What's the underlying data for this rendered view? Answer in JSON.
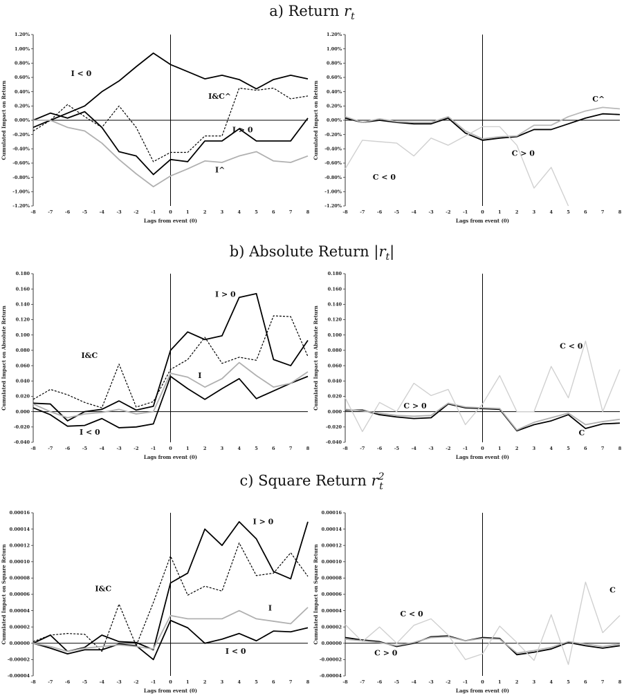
{
  "rows": [
    {
      "prefix": "a) Return",
      "symbol": "r",
      "sub": "t",
      "sup": "",
      "bars": ""
    },
    {
      "prefix": "b) Absolute Return",
      "symbol": "r",
      "sub": "t",
      "sup": "",
      "bars": "|"
    },
    {
      "prefix": "c) Square Return",
      "symbol": "r",
      "sub": "t",
      "sup": "2",
      "bars": ""
    }
  ],
  "chart_data": [
    {
      "type": "line",
      "panel": "a-left",
      "xlabel": "Lags from event (0)",
      "ylabel": "Cumulated Impact on Return",
      "x": [
        -8,
        -7,
        -6,
        -5,
        -4,
        -3,
        -2,
        -1,
        0,
        1,
        2,
        3,
        4,
        5,
        6,
        7,
        8
      ],
      "ylim": [
        -0.012,
        0.012
      ],
      "yticks": [
        -0.012,
        -0.01,
        -0.008,
        -0.006,
        -0.004,
        -0.002,
        0,
        0.002,
        0.004,
        0.006,
        0.008,
        0.01,
        0.012
      ],
      "ytick_labels": [
        "-1.20%",
        "-1.00%",
        "-0.80%",
        "-0.60%",
        "-0.40%",
        "-0.20%",
        "0.00%",
        "0.20%",
        "0.40%",
        "0.60%",
        "0.80%",
        "1.00%",
        "1.20%"
      ],
      "series": [
        {
          "values": [
            -0.001,
            0.0,
            0.001,
            0.002,
            0.004,
            0.0055,
            0.0075,
            0.0094,
            0.0078,
            0.0068,
            0.0058,
            0.0063,
            0.0057,
            0.0044,
            0.0057,
            0.0063,
            0.0058
          ],
          "color": "#000000",
          "dash": "",
          "width": 1.8
        },
        {
          "values": [
            0.0,
            0.001,
            0.0003,
            0.0012,
            -0.001,
            -0.0044,
            -0.005,
            -0.0076,
            -0.0055,
            -0.0058,
            -0.0029,
            -0.0029,
            -0.0012,
            -0.0029,
            -0.0029,
            -0.0029,
            0.0003
          ],
          "color": "#000000",
          "dash": "",
          "width": 1.8
        },
        {
          "values": [
            -0.0015,
            0.0,
            0.0022,
            0.0005,
            -0.001,
            0.002,
            -0.001,
            -0.0058,
            -0.0045,
            -0.0045,
            -0.0022,
            -0.0022,
            0.0045,
            0.0042,
            0.0045,
            0.003,
            0.0034
          ],
          "color": "#000000",
          "dash": "3,2",
          "width": 1.2
        },
        {
          "values": [
            0.0,
            0.0,
            -0.001,
            -0.0015,
            -0.0032,
            -0.0055,
            -0.0075,
            -0.0093,
            -0.0078,
            -0.0068,
            -0.0057,
            -0.0059,
            -0.005,
            -0.0044,
            -0.0057,
            -0.0059,
            -0.005
          ],
          "color": "#b0b0b0",
          "dash": "",
          "width": 1.8
        }
      ],
      "annotations": [
        {
          "text": "I < 0",
          "x": -5.8,
          "y": 0.0062
        },
        {
          "text": "I&C^",
          "x": 2.2,
          "y": 0.003
        },
        {
          "text": "I > 0",
          "x": 3.6,
          "y": -0.0017
        },
        {
          "text": "I^",
          "x": 2.6,
          "y": -0.0073
        }
      ]
    },
    {
      "type": "line",
      "panel": "a-right",
      "xlabel": "Lags from event (0)",
      "ylabel": "Cumulated Impact on Return",
      "x": [
        -8,
        -7,
        -6,
        -5,
        -4,
        -3,
        -2,
        -1,
        0,
        1,
        2,
        3,
        4,
        5,
        6,
        7,
        8
      ],
      "ylim": [
        -0.012,
        0.012
      ],
      "yticks": [
        -0.012,
        -0.01,
        -0.008,
        -0.006,
        -0.004,
        -0.002,
        0,
        0.002,
        0.004,
        0.006,
        0.008,
        0.01,
        0.012
      ],
      "ytick_labels": [
        "-1.20%",
        "-1.00%",
        "-0.80%",
        "-0.60%",
        "-0.40%",
        "-0.20%",
        "0.00%",
        "0.20%",
        "0.40%",
        "0.60%",
        "0.80%",
        "1.00%",
        "1.20%"
      ],
      "series": [
        {
          "values": [
            0.0003,
            -0.0003,
            0.0,
            -0.0003,
            -0.0005,
            -0.0005,
            0.0003,
            -0.0018,
            -0.0028,
            -0.0025,
            -0.0023,
            -0.0013,
            -0.0013,
            -0.0005,
            0.0003,
            0.0009,
            0.0008
          ],
          "color": "#000000",
          "dash": "",
          "width": 1.8
        },
        {
          "values": [
            0.0005,
            -0.0003,
            0.0002,
            -0.0002,
            -0.0003,
            -0.0003,
            0.0005,
            -0.0015,
            -0.0026,
            -0.0023,
            -0.0022,
            -0.0007,
            -0.0007,
            0.0005,
            0.0013,
            0.0018,
            0.0016
          ],
          "color": "#b8b8b8",
          "dash": "",
          "width": 1.8
        },
        {
          "values": [
            -0.0068,
            -0.0028,
            -0.003,
            -0.0032,
            -0.005,
            -0.0025,
            -0.0035,
            -0.0022,
            -0.0009,
            -0.0009,
            -0.0035,
            -0.0095,
            -0.0066,
            -0.012,
            null,
            null,
            null
          ],
          "color": "#d0d0d0",
          "dash": "",
          "width": 1.4
        }
      ],
      "annotations": [
        {
          "text": "C^",
          "x": 6.4,
          "y": 0.0026
        },
        {
          "text": "C > 0",
          "x": 1.7,
          "y": -0.005
        },
        {
          "text": "C < 0",
          "x": -6.4,
          "y": -0.0083
        }
      ]
    },
    {
      "type": "line",
      "panel": "b-left",
      "xlabel": "Lags from event (0)",
      "ylabel": "Cumulated Impact on Absolute Return",
      "x": [
        -8,
        -7,
        -6,
        -5,
        -4,
        -3,
        -2,
        -1,
        0,
        1,
        2,
        3,
        4,
        5,
        6,
        7,
        8
      ],
      "ylim": [
        -0.04,
        0.18
      ],
      "yticks": [
        -0.04,
        -0.02,
        0,
        0.02,
        0.04,
        0.06,
        0.08,
        0.1,
        0.12,
        0.14,
        0.16,
        0.18
      ],
      "ytick_labels": [
        "-0.040",
        "-0.020",
        "0.000",
        "0.020",
        "0.040",
        "0.060",
        "0.080",
        "0.100",
        "0.120",
        "0.140",
        "0.160",
        "0.180"
      ],
      "series": [
        {
          "values": [
            0.011,
            0.01,
            -0.012,
            0.0,
            0.003,
            0.014,
            0.002,
            0.007,
            0.08,
            0.104,
            0.094,
            0.099,
            0.149,
            0.154,
            0.068,
            0.06,
            0.093
          ],
          "color": "#000000",
          "dash": "",
          "width": 1.8
        },
        {
          "values": [
            0.005,
            -0.004,
            -0.019,
            -0.018,
            -0.009,
            -0.021,
            -0.02,
            -0.016,
            0.046,
            0.03,
            0.016,
            0.03,
            0.043,
            0.017,
            0.027,
            0.037,
            0.046
          ],
          "color": "#000000",
          "dash": "",
          "width": 1.8
        },
        {
          "values": [
            0.016,
            0.029,
            0.022,
            0.012,
            0.005,
            0.062,
            0.006,
            0.013,
            0.055,
            0.068,
            0.097,
            0.063,
            0.071,
            0.067,
            0.125,
            0.124,
            0.072
          ],
          "color": "#000000",
          "dash": "3,2",
          "width": 1.2
        },
        {
          "values": [
            0.01,
            0.0,
            -0.008,
            -0.003,
            -0.001,
            0.003,
            -0.003,
            0.0,
            0.05,
            0.045,
            0.032,
            0.043,
            0.064,
            0.047,
            0.032,
            0.037,
            0.052
          ],
          "color": "#b0b0b0",
          "dash": "",
          "width": 1.8
        }
      ],
      "annotations": [
        {
          "text": "I > 0",
          "x": 2.6,
          "y": 0.15
        },
        {
          "text": "I&C",
          "x": -5.2,
          "y": 0.07
        },
        {
          "text": "I",
          "x": 1.6,
          "y": 0.044
        },
        {
          "text": "I < 0",
          "x": -5.3,
          "y": -0.03
        }
      ]
    },
    {
      "type": "line",
      "panel": "b-right",
      "xlabel": "Lags from event (0)",
      "ylabel": "Cumulated Impact on Absolute Return",
      "x": [
        -8,
        -7,
        -6,
        -5,
        -4,
        -3,
        -2,
        -1,
        0,
        1,
        2,
        3,
        4,
        5,
        6,
        7,
        8
      ],
      "ylim": [
        -0.04,
        0.18
      ],
      "yticks": [
        -0.04,
        -0.02,
        0,
        0.02,
        0.04,
        0.06,
        0.08,
        0.1,
        0.12,
        0.14,
        0.16,
        0.18
      ],
      "ytick_labels": [
        "-0.040",
        "-0.020",
        "0.000",
        "0.020",
        "0.040",
        "0.060",
        "0.080",
        "0.100",
        "0.120",
        "0.140",
        "0.160",
        "0.180"
      ],
      "series": [
        {
          "values": [
            0.002,
            0.002,
            -0.004,
            -0.007,
            -0.009,
            -0.008,
            0.01,
            0.005,
            0.004,
            0.003,
            -0.025,
            -0.017,
            -0.012,
            -0.004,
            -0.022,
            -0.016,
            -0.015
          ],
          "color": "#000000",
          "dash": "",
          "width": 1.8
        },
        {
          "values": [
            0.003,
            0.001,
            -0.002,
            -0.005,
            -0.006,
            -0.005,
            0.011,
            0.006,
            0.005,
            0.004,
            -0.024,
            -0.014,
            -0.008,
            -0.002,
            -0.017,
            -0.013,
            -0.01
          ],
          "color": "#b0b0b0",
          "dash": "",
          "width": 1.8
        },
        {
          "values": [
            0.018,
            -0.026,
            0.012,
            0.0,
            0.037,
            0.021,
            0.029,
            -0.017,
            0.01,
            0.047,
            0.0,
            0.0,
            0.059,
            0.018,
            0.092,
            0.0,
            0.055
          ],
          "color": "#d0d0d0",
          "dash": "",
          "width": 1.4
        }
      ],
      "annotations": [
        {
          "text": "C < 0",
          "x": 4.5,
          "y": 0.082
        },
        {
          "text": "C > 0",
          "x": -4.6,
          "y": 0.004
        },
        {
          "text": "C",
          "x": 5.6,
          "y": -0.031
        }
      ]
    },
    {
      "type": "line",
      "panel": "c-left",
      "xlabel": "Lags from event (0)",
      "ylabel": "Cumulated Impact on Square Return",
      "x": [
        -8,
        -7,
        -6,
        -5,
        -4,
        -3,
        -2,
        -1,
        0,
        1,
        2,
        3,
        4,
        5,
        6,
        7,
        8
      ],
      "ylim": [
        -4e-05,
        0.00016
      ],
      "yticks": [
        -4e-05,
        -2e-05,
        0,
        2e-05,
        4e-05,
        6e-05,
        8e-05,
        0.0001,
        0.00012,
        0.00014,
        0.00016
      ],
      "ytick_labels": [
        "-0.00004",
        "-0.00002",
        "0.00000",
        "0.00002",
        "0.00004",
        "0.00006",
        "0.00008",
        "0.00010",
        "0.00012",
        "0.00014",
        "0.00016"
      ],
      "series": [
        {
          "values": [
            0.0,
            1e-05,
            -1e-05,
            -5e-06,
            1e-05,
            2e-06,
            1e-06,
            -8e-06,
            7.4e-05,
            8.6e-05,
            0.00014,
            0.00012,
            0.000149,
            0.000128,
            8.8e-05,
            7.9e-05,
            0.000149
          ],
          "color": "#000000",
          "dash": "",
          "width": 1.8
        },
        {
          "values": [
            0.0,
            -6e-06,
            -1.3e-05,
            -8e-06,
            -8e-06,
            -1e-06,
            -3e-06,
            -2e-05,
            2.8e-05,
            1.9e-05,
            0.0,
            5e-06,
            1.2e-05,
            3e-06,
            1.5e-05,
            1.4e-05,
            1.9e-05
          ],
          "color": "#000000",
          "dash": "",
          "width": 1.8
        },
        {
          "values": [
            2e-06,
            1e-05,
            1.2e-05,
            1.1e-05,
            -1e-05,
            4.8e-05,
            -3e-06,
            5e-05,
            0.000107,
            5.9e-05,
            7e-05,
            6.4e-05,
            0.000123,
            8.3e-05,
            8.6e-05,
            0.000111,
            8.2e-05
          ],
          "color": "#000000",
          "dash": "3,2",
          "width": 1.2
        },
        {
          "values": [
            0.0,
            -4e-06,
            -1e-05,
            -6e-06,
            -4e-06,
            -2e-06,
            -4e-06,
            -7e-06,
            3.4e-05,
            3e-05,
            3e-05,
            3e-05,
            4e-05,
            3e-05,
            2.7e-05,
            2.4e-05,
            4.4e-05
          ],
          "color": "#b0b0b0",
          "dash": "",
          "width": 1.8
        }
      ],
      "annotations": [
        {
          "text": "I > 0",
          "x": 4.8,
          "y": 0.000146
        },
        {
          "text": "I&C",
          "x": -4.4,
          "y": 6.4e-05
        },
        {
          "text": "I",
          "x": 5.7,
          "y": 4e-05
        },
        {
          "text": "I < 0",
          "x": 3.2,
          "y": -1.3e-05
        }
      ]
    },
    {
      "type": "line",
      "panel": "c-right",
      "xlabel": "Lags from event (0)",
      "ylabel": "Cumulated Impact on Square Return",
      "x": [
        -8,
        -7,
        -6,
        -5,
        -4,
        -3,
        -2,
        -1,
        0,
        1,
        2,
        3,
        4,
        5,
        6,
        7,
        8
      ],
      "ylim": [
        -4e-05,
        0.00016
      ],
      "yticks": [
        -4e-05,
        -2e-05,
        0,
        2e-05,
        4e-05,
        6e-05,
        8e-05,
        0.0001,
        0.00012,
        0.00014,
        0.00016
      ],
      "ytick_labels": [
        "-0.00004",
        "-0.00002",
        "0.00000",
        "0.00002",
        "0.00004",
        "0.00006",
        "0.00008",
        "0.00010",
        "0.00012",
        "0.00014",
        "0.00016"
      ],
      "series": [
        {
          "values": [
            7e-06,
            4e-06,
            2e-06,
            -4e-06,
            0.0,
            8e-06,
            9e-06,
            3e-06,
            7e-06,
            6e-06,
            -1.4e-05,
            -1.1e-05,
            -7e-06,
            1e-06,
            -3e-06,
            -6e-06,
            -3e-06
          ],
          "color": "#000000",
          "dash": "",
          "width": 1.8
        },
        {
          "values": [
            5e-06,
            3e-06,
            1e-06,
            -3e-06,
            1e-06,
            7e-06,
            8e-06,
            3e-06,
            6e-06,
            5e-06,
            -1.2e-05,
            -9e-06,
            -5e-06,
            2e-06,
            -1e-06,
            -4e-06,
            -1e-06
          ],
          "color": "#b0b0b0",
          "dash": "",
          "width": 1.8
        },
        {
          "values": [
            2.3e-05,
            2e-06,
            2e-05,
            0.0,
            2.2e-05,
            3e-05,
            1e-05,
            -2e-05,
            -1.3e-05,
            2.1e-05,
            1e-06,
            -2.1e-05,
            3.5e-05,
            -2.6e-05,
            7.5e-05,
            1.3e-05,
            3.4e-05
          ],
          "color": "#d0d0d0",
          "dash": "",
          "width": 1.4
        }
      ],
      "annotations": [
        {
          "text": "C",
          "x": 7.4,
          "y": 6.2e-05
        },
        {
          "text": "C < 0",
          "x": -4.8,
          "y": 3.3e-05
        },
        {
          "text": "C > 0",
          "x": -6.3,
          "y": -1.5e-05
        }
      ]
    }
  ]
}
